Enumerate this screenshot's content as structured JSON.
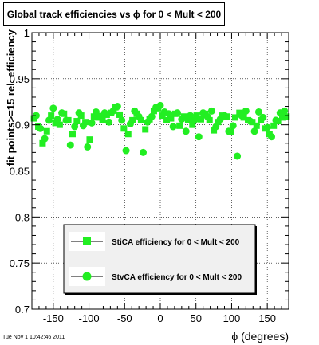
{
  "chart_data": {
    "type": "scatter",
    "title": "Global track efficiencies vs ϕ for 0 < Mult < 200",
    "xlabel": "ϕ (degrees)",
    "ylabel": "fit points>=15 rel. efficiency",
    "xlim": [
      -180,
      180
    ],
    "ylim": [
      0.7,
      1.0
    ],
    "x_ticks": [
      -150,
      -100,
      -50,
      0,
      50,
      100,
      150
    ],
    "y_ticks": [
      0.7,
      0.75,
      0.8,
      0.85,
      0.9,
      0.95,
      1
    ],
    "grid": true,
    "legend_position": "lower-center",
    "series": [
      {
        "name": "StiCA efficiency for 0 < Mult < 200",
        "marker": "square",
        "color": "#22ee22",
        "x": [
          -177,
          -171,
          -165,
          -159,
          -153,
          -147,
          -141,
          -135,
          -129,
          -123,
          -117,
          -111,
          -105,
          -99,
          -93,
          -87,
          -81,
          -75,
          -69,
          -63,
          -57,
          -51,
          -45,
          -39,
          -33,
          -27,
          -21,
          -15,
          -9,
          -3,
          3,
          9,
          15,
          21,
          27,
          33,
          39,
          45,
          51,
          57,
          63,
          69,
          75,
          81,
          87,
          93,
          99,
          105,
          111,
          117,
          123,
          129,
          135,
          141,
          147,
          153,
          159,
          165,
          171,
          177
        ],
        "y": [
          0.907,
          0.898,
          0.88,
          0.893,
          0.91,
          0.902,
          0.9,
          0.912,
          0.905,
          0.89,
          0.904,
          0.91,
          0.903,
          0.884,
          0.909,
          0.908,
          0.905,
          0.911,
          0.913,
          0.919,
          0.911,
          0.896,
          0.89,
          0.905,
          0.912,
          0.905,
          0.895,
          0.906,
          0.915,
          0.918,
          0.91,
          0.905,
          0.907,
          0.912,
          0.899,
          0.909,
          0.905,
          0.9,
          0.91,
          0.906,
          0.912,
          0.905,
          0.894,
          0.903,
          0.91,
          0.909,
          0.892,
          0.908,
          0.913,
          0.908,
          0.905,
          0.903,
          0.899,
          0.905,
          0.896,
          0.89,
          0.899,
          0.904,
          0.908,
          0.909
        ]
      },
      {
        "name": "StvCA efficiency for 0 < Mult < 200",
        "marker": "circle",
        "color": "#22ee22",
        "x": [
          -174,
          -168,
          -162,
          -156,
          -150,
          -144,
          -138,
          -132,
          -126,
          -120,
          -114,
          -108,
          -102,
          -96,
          -90,
          -84,
          -78,
          -72,
          -66,
          -60,
          -54,
          -48,
          -42,
          -36,
          -30,
          -24,
          -18,
          -12,
          -6,
          0,
          6,
          12,
          18,
          24,
          30,
          36,
          42,
          48,
          54,
          60,
          66,
          72,
          78,
          84,
          90,
          96,
          102,
          108,
          114,
          120,
          126,
          132,
          138,
          144,
          150,
          156,
          162,
          168,
          174
        ],
        "y": [
          0.91,
          0.896,
          0.885,
          0.905,
          0.918,
          0.906,
          0.913,
          0.905,
          0.878,
          0.898,
          0.913,
          0.899,
          0.876,
          0.902,
          0.914,
          0.909,
          0.913,
          0.903,
          0.915,
          0.92,
          0.905,
          0.872,
          0.901,
          0.915,
          0.909,
          0.87,
          0.903,
          0.909,
          0.919,
          0.921,
          0.914,
          0.912,
          0.898,
          0.913,
          0.906,
          0.893,
          0.91,
          0.905,
          0.887,
          0.913,
          0.909,
          0.915,
          0.898,
          0.906,
          0.91,
          0.893,
          0.899,
          0.866,
          0.91,
          0.915,
          0.904,
          0.893,
          0.914,
          0.908,
          0.897,
          0.887,
          0.905,
          0.913,
          0.915
        ]
      }
    ]
  },
  "footer": {
    "timestamp": "Tue Nov  1 10:42:46 2011"
  }
}
